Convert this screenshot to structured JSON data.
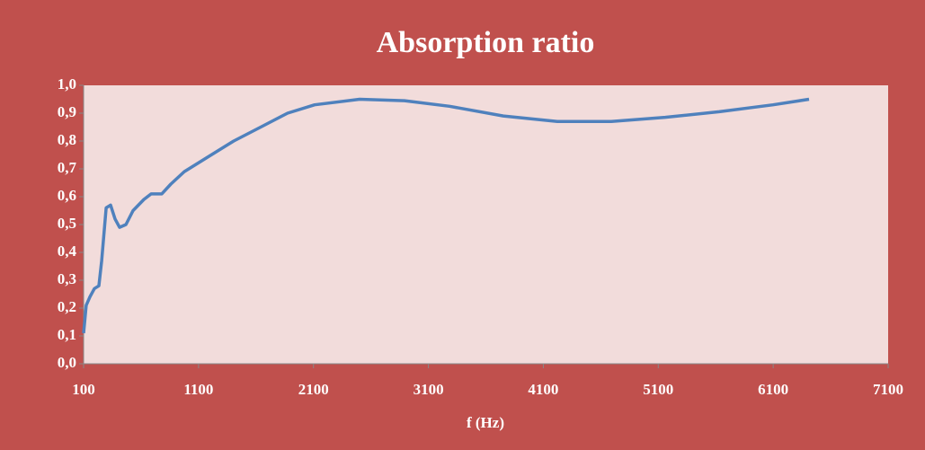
{
  "chart_data": {
    "type": "line",
    "title": "Absorption ratio",
    "x_label": "f (Hz)",
    "x": [
      100,
      123,
      155,
      194,
      233,
      257,
      296,
      335,
      374,
      413,
      468,
      530,
      624,
      687,
      780,
      859,
      976,
      1171,
      1406,
      1641,
      1875,
      2110,
      2501,
      2892,
      3283,
      3752,
      4222,
      4691,
      5160,
      5630,
      6099,
      6412
    ],
    "values": [
      0.11,
      0.21,
      0.24,
      0.27,
      0.28,
      0.37,
      0.56,
      0.57,
      0.52,
      0.49,
      0.5,
      0.55,
      0.59,
      0.61,
      0.61,
      0.645,
      0.69,
      0.74,
      0.8,
      0.85,
      0.9,
      0.93,
      0.95,
      0.945,
      0.925,
      0.89,
      0.87,
      0.87,
      0.885,
      0.905,
      0.93,
      0.95
    ],
    "color": "#4f81bd",
    "xlim": [
      100,
      7100
    ],
    "xticks": [
      100,
      1100,
      2100,
      3100,
      4100,
      5100,
      6100,
      7100
    ],
    "ylim": [
      0,
      1
    ],
    "yticks": [
      {
        "value": 0,
        "label": "0,0"
      },
      {
        "value": 0.1,
        "label": "0,1"
      },
      {
        "value": 0.2,
        "label": "0,2"
      },
      {
        "value": 0.3,
        "label": "0,3"
      },
      {
        "value": 0.4,
        "label": "0,4"
      },
      {
        "value": 0.5,
        "label": "0,5"
      },
      {
        "value": 0.6,
        "label": "0,6"
      },
      {
        "value": 0.7,
        "label": "0,7"
      },
      {
        "value": 0.8,
        "label": "0,8"
      },
      {
        "value": 0.9,
        "label": "0,9"
      },
      {
        "value": 1,
        "label": "1,0"
      }
    ],
    "grid": false
  }
}
